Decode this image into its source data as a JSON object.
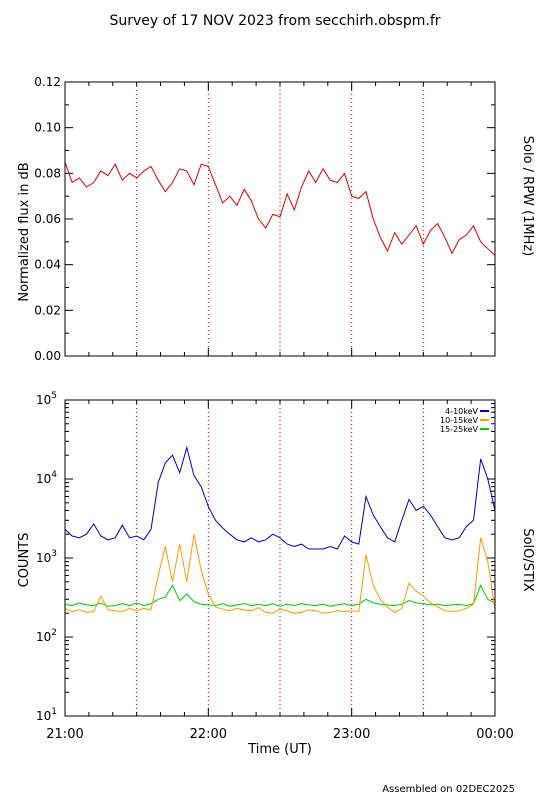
{
  "title": "Survey of 17 NOV 2023 from secchirh.obspm.fr",
  "footer": "Assembled on 02DEC2025",
  "colors": {
    "rpw": "#dd0000",
    "stix_low": "#0000bb",
    "stix_mid": "#ff9900",
    "stix_high": "#00cc00",
    "marker": "#bb0000"
  },
  "chart_data": [
    {
      "type": "line",
      "ylabel": "Normalized flux in dB",
      "right_label": "Solo / RPW (1MHz)",
      "y_ticks": [
        "0.00",
        "0.02",
        "0.04",
        "0.06",
        "0.08",
        "0.10",
        "0.12"
      ],
      "ylim": [
        0,
        0.12
      ],
      "xlim_hours": [
        21,
        24
      ],
      "markers_hours": [
        21.5,
        22.0,
        22.5,
        23.0,
        23.5
      ],
      "series": [
        {
          "x": [
            21.0,
            21.05,
            21.1,
            21.15,
            21.2,
            21.25,
            21.3,
            21.35,
            21.4,
            21.45,
            21.5,
            21.55,
            21.6,
            21.65,
            21.7,
            21.75,
            21.8,
            21.85,
            21.9,
            21.95,
            22.0,
            22.05,
            22.1,
            22.15,
            22.2,
            22.25,
            22.3,
            22.35,
            22.4,
            22.45,
            22.5,
            22.55,
            22.6,
            22.65,
            22.7,
            22.75,
            22.8,
            22.85,
            22.9,
            22.95,
            23.0,
            23.05,
            23.1,
            23.15,
            23.2,
            23.25,
            23.3,
            23.35,
            23.4,
            23.45,
            23.5,
            23.55,
            23.6,
            23.65,
            23.7,
            23.75,
            23.8,
            23.85,
            23.9,
            23.95,
            24.0
          ],
          "values": [
            0.085,
            0.076,
            0.078,
            0.074,
            0.076,
            0.081,
            0.079,
            0.084,
            0.077,
            0.08,
            0.078,
            0.081,
            0.083,
            0.077,
            0.072,
            0.076,
            0.082,
            0.081,
            0.075,
            0.084,
            0.083,
            0.075,
            0.067,
            0.07,
            0.066,
            0.073,
            0.068,
            0.06,
            0.056,
            0.062,
            0.061,
            0.071,
            0.064,
            0.074,
            0.081,
            0.076,
            0.082,
            0.077,
            0.076,
            0.08,
            0.07,
            0.069,
            0.072,
            0.06,
            0.052,
            0.046,
            0.054,
            0.049,
            0.053,
            0.057,
            0.049,
            0.055,
            0.058,
            0.052,
            0.045,
            0.051,
            0.053,
            0.057,
            0.05,
            0.047,
            0.044
          ]
        }
      ]
    },
    {
      "type": "line",
      "ylabel": "COUNTS",
      "right_label": "SolO/STIX",
      "xlabel": "Time (UT)",
      "x_tick_labels": [
        "21:00",
        "22:00",
        "23:00",
        "00:00"
      ],
      "x_tick_hours": [
        21,
        22,
        23,
        24
      ],
      "y_tick_labels": [
        [
          "10",
          "1"
        ],
        [
          "10",
          "2"
        ],
        [
          "10",
          "3"
        ],
        [
          "10",
          "4"
        ],
        [
          "10",
          "5"
        ]
      ],
      "y_scale": "log",
      "ylim": [
        10,
        100000
      ],
      "xlim_hours": [
        21,
        24
      ],
      "markers_hours": [
        21.5,
        22.0,
        22.5,
        23.0,
        23.5
      ],
      "legend": [
        "4-10keV",
        "10-15keV",
        "15-25keV"
      ],
      "legend_position": "top-right",
      "series": [
        {
          "name": "4-10keV",
          "x": [
            21.0,
            21.05,
            21.1,
            21.15,
            21.2,
            21.25,
            21.3,
            21.35,
            21.4,
            21.45,
            21.5,
            21.55,
            21.6,
            21.65,
            21.7,
            21.75,
            21.8,
            21.85,
            21.9,
            21.95,
            22.0,
            22.05,
            22.1,
            22.15,
            22.2,
            22.25,
            22.3,
            22.35,
            22.4,
            22.45,
            22.5,
            22.55,
            22.6,
            22.65,
            22.7,
            22.75,
            22.8,
            22.85,
            22.9,
            22.95,
            23.0,
            23.05,
            23.1,
            23.15,
            23.2,
            23.25,
            23.3,
            23.35,
            23.4,
            23.45,
            23.5,
            23.55,
            23.6,
            23.65,
            23.7,
            23.75,
            23.8,
            23.85,
            23.9,
            23.95,
            24.0
          ],
          "values": [
            2300,
            1900,
            1800,
            2000,
            2700,
            1900,
            1700,
            1800,
            2600,
            1800,
            1900,
            1700,
            2300,
            9000,
            16000,
            20000,
            12000,
            25000,
            11000,
            8000,
            4500,
            3000,
            2400,
            2000,
            1700,
            1600,
            1800,
            1600,
            1700,
            2000,
            1800,
            1500,
            1400,
            1500,
            1300,
            1300,
            1300,
            1400,
            1300,
            1900,
            1600,
            1500,
            6000,
            3500,
            2500,
            1800,
            1600,
            3000,
            5500,
            4000,
            4500,
            3500,
            2500,
            1800,
            1700,
            1800,
            2500,
            3000,
            18000,
            10000,
            4000
          ]
        },
        {
          "name": "10-15keV",
          "x": [
            21.0,
            21.05,
            21.1,
            21.15,
            21.2,
            21.25,
            21.3,
            21.35,
            21.4,
            21.45,
            21.5,
            21.55,
            21.6,
            21.65,
            21.7,
            21.75,
            21.8,
            21.85,
            21.9,
            21.95,
            22.0,
            22.05,
            22.1,
            22.15,
            22.2,
            22.25,
            22.3,
            22.35,
            22.4,
            22.45,
            22.5,
            22.55,
            22.6,
            22.65,
            22.7,
            22.75,
            22.8,
            22.85,
            22.9,
            22.95,
            23.0,
            23.05,
            23.1,
            23.15,
            23.2,
            23.25,
            23.3,
            23.35,
            23.4,
            23.45,
            23.5,
            23.55,
            23.6,
            23.65,
            23.7,
            23.75,
            23.8,
            23.85,
            23.9,
            23.95,
            24.0
          ],
          "values": [
            230,
            210,
            220,
            205,
            210,
            330,
            220,
            215,
            210,
            230,
            215,
            230,
            220,
            600,
            1400,
            500,
            1500,
            500,
            2000,
            700,
            350,
            240,
            225,
            215,
            230,
            220,
            215,
            235,
            205,
            200,
            225,
            215,
            200,
            205,
            220,
            215,
            200,
            205,
            215,
            210,
            215,
            210,
            1100,
            450,
            300,
            240,
            205,
            230,
            480,
            380,
            330,
            270,
            240,
            215,
            210,
            215,
            230,
            260,
            1800,
            900,
            220
          ]
        },
        {
          "name": "15-25keV",
          "x": [
            21.0,
            21.05,
            21.1,
            21.15,
            21.2,
            21.25,
            21.3,
            21.35,
            21.4,
            21.45,
            21.5,
            21.55,
            21.6,
            21.65,
            21.7,
            21.75,
            21.8,
            21.85,
            21.9,
            21.95,
            22.0,
            22.05,
            22.1,
            22.15,
            22.2,
            22.25,
            22.3,
            22.35,
            22.4,
            22.45,
            22.5,
            22.55,
            22.6,
            22.65,
            22.7,
            22.75,
            22.8,
            22.85,
            22.9,
            22.95,
            23.0,
            23.05,
            23.1,
            23.15,
            23.2,
            23.25,
            23.3,
            23.35,
            23.4,
            23.45,
            23.5,
            23.55,
            23.6,
            23.65,
            23.7,
            23.75,
            23.8,
            23.85,
            23.9,
            23.95,
            24.0
          ],
          "values": [
            260,
            250,
            270,
            255,
            250,
            270,
            245,
            250,
            265,
            250,
            270,
            250,
            265,
            300,
            320,
            450,
            290,
            350,
            280,
            260,
            255,
            250,
            265,
            245,
            255,
            265,
            250,
            260,
            250,
            265,
            245,
            260,
            250,
            265,
            255,
            250,
            260,
            245,
            255,
            265,
            250,
            260,
            300,
            270,
            260,
            255,
            250,
            260,
            290,
            270,
            265,
            255,
            260,
            250,
            255,
            260,
            250,
            265,
            450,
            300,
            270
          ]
        }
      ]
    }
  ]
}
